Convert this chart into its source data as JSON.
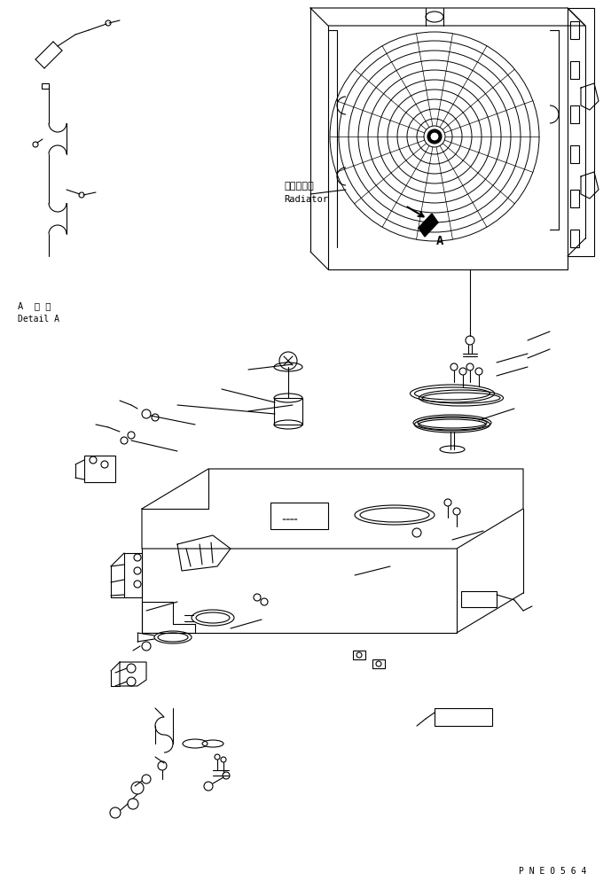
{
  "bg_color": "#ffffff",
  "line_color": "#000000",
  "text_color": "#000000",
  "line_width": 0.8,
  "title_text": "P N E 0 5 6 4",
  "label_radiator_jp": "ラジエータ",
  "label_radiator_en": "Radiator",
  "label_detail_jp": "A  詳 細",
  "label_detail_en": "Detail A",
  "label_A": "A"
}
